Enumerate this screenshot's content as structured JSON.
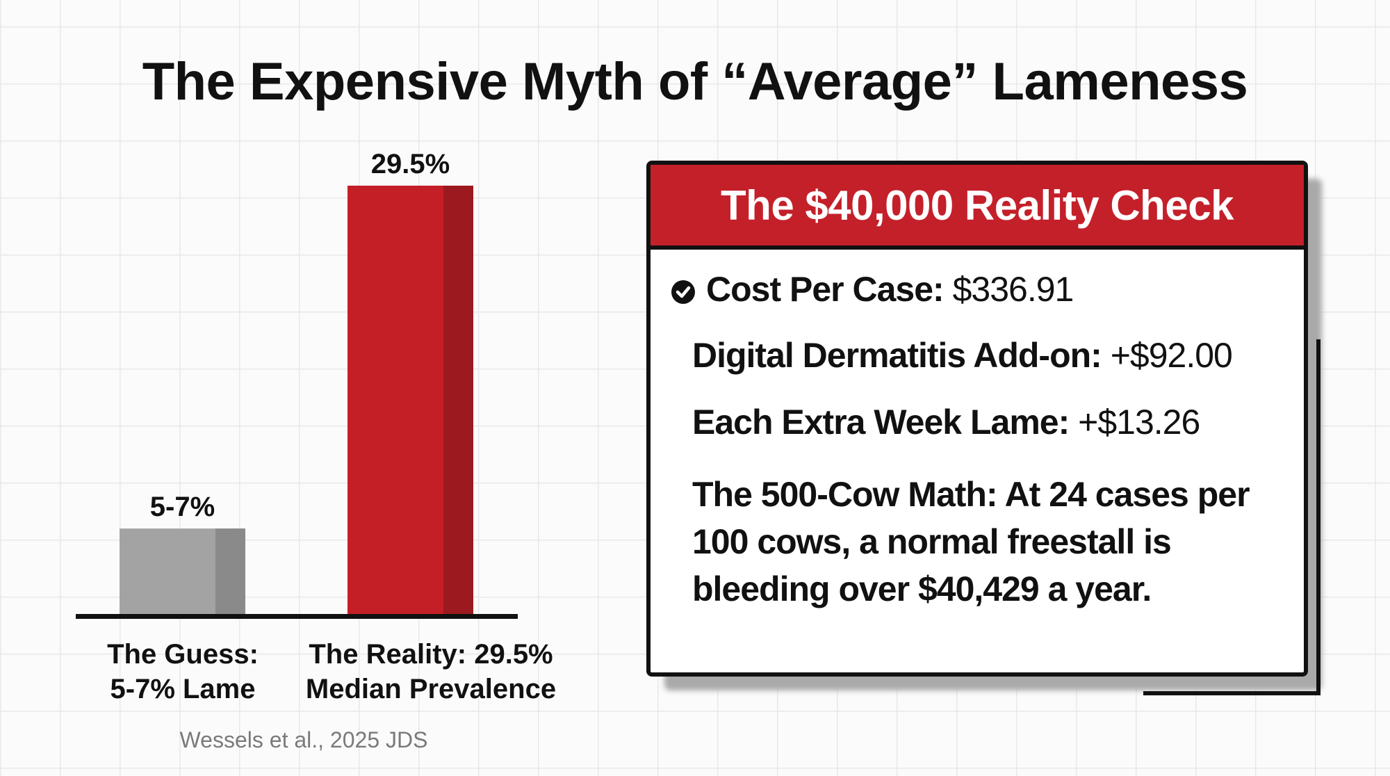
{
  "title": "The Expensive Myth of “Average” Lameness",
  "chart_data": {
    "type": "bar",
    "categories": [
      "The Guess: 5-7% Lame",
      "The Reality: 29.5% Median Prevalence"
    ],
    "category_lines": [
      [
        "The Guess:",
        "5-7% Lame"
      ],
      [
        "The Reality: 29.5%",
        "Median Prevalence"
      ]
    ],
    "values": [
      6,
      29.5
    ],
    "value_labels": [
      "5-7%",
      "29.5%"
    ],
    "colors": [
      "#a3a3a3",
      "#c41f26"
    ],
    "side_colors": [
      "#8a8a8a",
      "#9c1a1f"
    ],
    "ylim": [
      0,
      29.5
    ],
    "grid": false,
    "source": "Wessels et al., 2025 JDS"
  },
  "card": {
    "title": "The $40,000 Reality Check",
    "items": [
      {
        "label": "Cost Per Case:",
        "value": "$336.91",
        "icon": "check-circle-icon"
      },
      {
        "label": "Digital Dermatitis Add-on:",
        "value": "+$92.00"
      },
      {
        "label": "Each Extra Week Lame:",
        "value": "+$13.26"
      }
    ],
    "math": "The 500-Cow Math: At 24 cases per 100 cows, a normal freestall is bleeding over $40,429 a year."
  },
  "colors": {
    "accent": "#c4202a",
    "text": "#111111"
  }
}
